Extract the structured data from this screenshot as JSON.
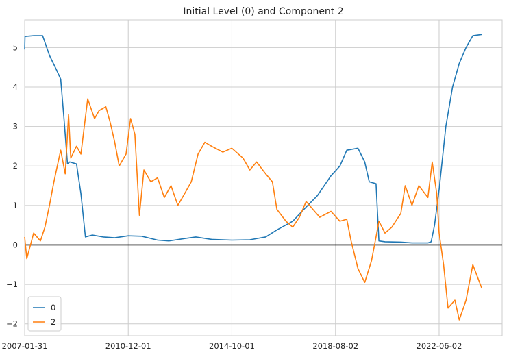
{
  "chart_data": {
    "type": "line",
    "title": "Initial Level (0) and Component 2",
    "xlabel": "",
    "ylabel": "",
    "xlim": [
      "2007-01-31",
      "2024-10-01"
    ],
    "ylim": [
      -2.3,
      5.7
    ],
    "x_ticks": [
      "2007-01-31",
      "2010-12-01",
      "2014-10-01",
      "2018-08-02",
      "2022-06-02"
    ],
    "y_ticks": [
      -2,
      -1,
      0,
      1,
      2,
      3,
      4,
      5
    ],
    "grid": true,
    "legend": "lower-left",
    "reference_line": {
      "y": 0,
      "color": "#000000"
    },
    "series": [
      {
        "name": "0",
        "color": "#1f77b4",
        "points": [
          [
            "2007-01-31",
            4.95
          ],
          [
            "2007-02-05",
            5.28
          ],
          [
            "2007-06-01",
            5.3
          ],
          [
            "2007-10-01",
            5.3
          ],
          [
            "2008-01-01",
            4.8
          ],
          [
            "2008-04-01",
            4.45
          ],
          [
            "2008-06-01",
            4.2
          ],
          [
            "2008-07-15",
            3.2
          ],
          [
            "2008-09-01",
            2.05
          ],
          [
            "2008-10-01",
            2.1
          ],
          [
            "2009-01-01",
            2.05
          ],
          [
            "2009-03-01",
            1.3
          ],
          [
            "2009-05-01",
            0.2
          ],
          [
            "2009-08-01",
            0.25
          ],
          [
            "2010-01-01",
            0.2
          ],
          [
            "2010-06-01",
            0.18
          ],
          [
            "2010-12-01",
            0.23
          ],
          [
            "2011-06-01",
            0.22
          ],
          [
            "2012-01-01",
            0.12
          ],
          [
            "2012-06-01",
            0.1
          ],
          [
            "2013-01-01",
            0.16
          ],
          [
            "2013-06-01",
            0.2
          ],
          [
            "2014-01-01",
            0.14
          ],
          [
            "2014-10-01",
            0.12
          ],
          [
            "2015-06-01",
            0.13
          ],
          [
            "2016-01-01",
            0.2
          ],
          [
            "2016-06-01",
            0.38
          ],
          [
            "2017-01-01",
            0.6
          ],
          [
            "2017-06-01",
            0.9
          ],
          [
            "2017-12-01",
            1.25
          ],
          [
            "2018-06-01",
            1.75
          ],
          [
            "2018-10-01",
            2.0
          ],
          [
            "2019-01-01",
            2.4
          ],
          [
            "2019-06-01",
            2.45
          ],
          [
            "2019-09-01",
            2.1
          ],
          [
            "2019-11-01",
            1.6
          ],
          [
            "2020-02-01",
            1.55
          ],
          [
            "2020-03-10",
            0.1
          ],
          [
            "2020-06-01",
            0.08
          ],
          [
            "2021-01-01",
            0.07
          ],
          [
            "2021-06-01",
            0.05
          ],
          [
            "2022-01-01",
            0.05
          ],
          [
            "2022-02-15",
            0.08
          ],
          [
            "2022-04-01",
            0.5
          ],
          [
            "2022-06-02",
            1.4
          ],
          [
            "2022-09-01",
            3.0
          ],
          [
            "2022-12-01",
            4.0
          ],
          [
            "2023-03-01",
            4.6
          ],
          [
            "2023-06-01",
            5.0
          ],
          [
            "2023-09-01",
            5.3
          ],
          [
            "2023-12-31",
            5.33
          ]
        ]
      },
      {
        "name": "2",
        "color": "#ff7f0e",
        "points": [
          [
            "2007-01-31",
            0.2
          ],
          [
            "2007-03-01",
            -0.35
          ],
          [
            "2007-06-01",
            0.3
          ],
          [
            "2007-09-01",
            0.1
          ],
          [
            "2007-11-01",
            0.45
          ],
          [
            "2008-01-01",
            1.0
          ],
          [
            "2008-03-01",
            1.6
          ],
          [
            "2008-06-01",
            2.4
          ],
          [
            "2008-08-01",
            1.8
          ],
          [
            "2008-09-15",
            3.3
          ],
          [
            "2008-10-15",
            2.2
          ],
          [
            "2009-01-01",
            2.5
          ],
          [
            "2009-03-01",
            2.3
          ],
          [
            "2009-06-01",
            3.7
          ],
          [
            "2009-09-01",
            3.2
          ],
          [
            "2009-11-01",
            3.4
          ],
          [
            "2010-02-01",
            3.5
          ],
          [
            "2010-04-01",
            3.1
          ],
          [
            "2010-06-01",
            2.6
          ],
          [
            "2010-08-01",
            2.0
          ],
          [
            "2010-11-01",
            2.3
          ],
          [
            "2011-01-01",
            3.2
          ],
          [
            "2011-03-01",
            2.8
          ],
          [
            "2011-05-01",
            0.75
          ],
          [
            "2011-07-01",
            1.9
          ],
          [
            "2011-10-01",
            1.6
          ],
          [
            "2012-01-01",
            1.7
          ],
          [
            "2012-04-01",
            1.2
          ],
          [
            "2012-07-01",
            1.5
          ],
          [
            "2012-10-01",
            1.0
          ],
          [
            "2013-01-01",
            1.3
          ],
          [
            "2013-04-01",
            1.6
          ],
          [
            "2013-07-01",
            2.3
          ],
          [
            "2013-10-01",
            2.6
          ],
          [
            "2014-01-01",
            2.5
          ],
          [
            "2014-06-01",
            2.35
          ],
          [
            "2014-10-01",
            2.45
          ],
          [
            "2015-03-01",
            2.2
          ],
          [
            "2015-06-01",
            1.9
          ],
          [
            "2015-09-01",
            2.1
          ],
          [
            "2016-01-01",
            1.8
          ],
          [
            "2016-04-01",
            1.6
          ],
          [
            "2016-06-01",
            0.9
          ],
          [
            "2016-10-01",
            0.6
          ],
          [
            "2017-01-01",
            0.45
          ],
          [
            "2017-04-01",
            0.7
          ],
          [
            "2017-07-01",
            1.1
          ],
          [
            "2017-10-01",
            0.9
          ],
          [
            "2018-01-01",
            0.7
          ],
          [
            "2018-06-01",
            0.85
          ],
          [
            "2018-10-01",
            0.6
          ],
          [
            "2019-01-01",
            0.65
          ],
          [
            "2019-03-01",
            0.1
          ],
          [
            "2019-06-01",
            -0.6
          ],
          [
            "2019-09-01",
            -0.95
          ],
          [
            "2019-12-01",
            -0.4
          ],
          [
            "2020-02-01",
            0.2
          ],
          [
            "2020-03-10",
            0.6
          ],
          [
            "2020-06-01",
            0.3
          ],
          [
            "2020-09-01",
            0.45
          ],
          [
            "2021-01-01",
            0.8
          ],
          [
            "2021-03-01",
            1.5
          ],
          [
            "2021-06-01",
            1.0
          ],
          [
            "2021-09-01",
            1.5
          ],
          [
            "2022-01-01",
            1.2
          ],
          [
            "2022-03-01",
            2.1
          ],
          [
            "2022-05-01",
            1.3
          ],
          [
            "2022-06-02",
            0.3
          ],
          [
            "2022-08-01",
            -0.5
          ],
          [
            "2022-10-01",
            -1.6
          ],
          [
            "2023-01-01",
            -1.4
          ],
          [
            "2023-03-01",
            -1.9
          ],
          [
            "2023-06-01",
            -1.4
          ],
          [
            "2023-09-01",
            -0.5
          ],
          [
            "2023-12-31",
            -1.1
          ]
        ]
      }
    ]
  }
}
